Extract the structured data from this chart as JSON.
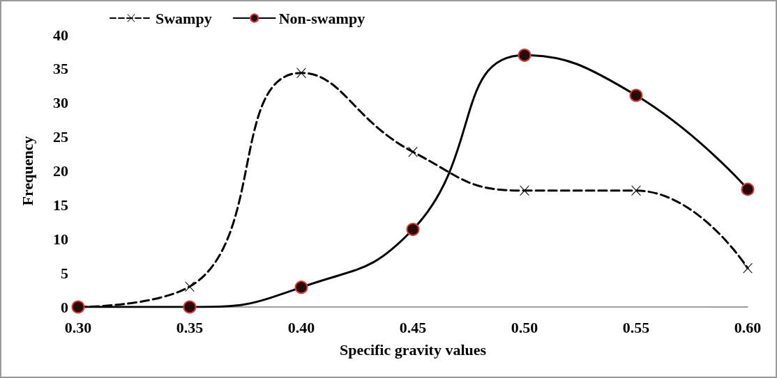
{
  "chart_data": {
    "type": "line",
    "xlabel": "Specific gravity values",
    "ylabel": "Frequency",
    "x": [
      0.3,
      0.35,
      0.4,
      0.45,
      0.5,
      0.55,
      0.6
    ],
    "series": [
      {
        "name": "Swampy",
        "color": "#000000",
        "line_style": "dashed",
        "marker": "cross",
        "values": [
          0,
          3,
          34.4,
          22.8,
          17.1,
          17.1,
          5.7
        ]
      },
      {
        "name": "Non-swampy",
        "color": "#000000",
        "line_style": "solid",
        "marker": "circle",
        "values": [
          0,
          0,
          2.9,
          11.4,
          37,
          31.1,
          17.3
        ]
      }
    ],
    "xlim": [
      0.3,
      0.6
    ],
    "xticks": [
      {
        "value": 0.3,
        "label": "0.30"
      },
      {
        "value": 0.35,
        "label": "0.35"
      },
      {
        "value": 0.4,
        "label": "0.40"
      },
      {
        "value": 0.45,
        "label": "0.45"
      },
      {
        "value": 0.5,
        "label": "0.50"
      },
      {
        "value": 0.55,
        "label": "0.55"
      },
      {
        "value": 0.6,
        "label": "0.60"
      }
    ],
    "ylim": [
      0,
      40
    ],
    "yticks": [
      0,
      5,
      10,
      15,
      20,
      25,
      30,
      35,
      40
    ],
    "grid": false,
    "legend": "top left"
  }
}
